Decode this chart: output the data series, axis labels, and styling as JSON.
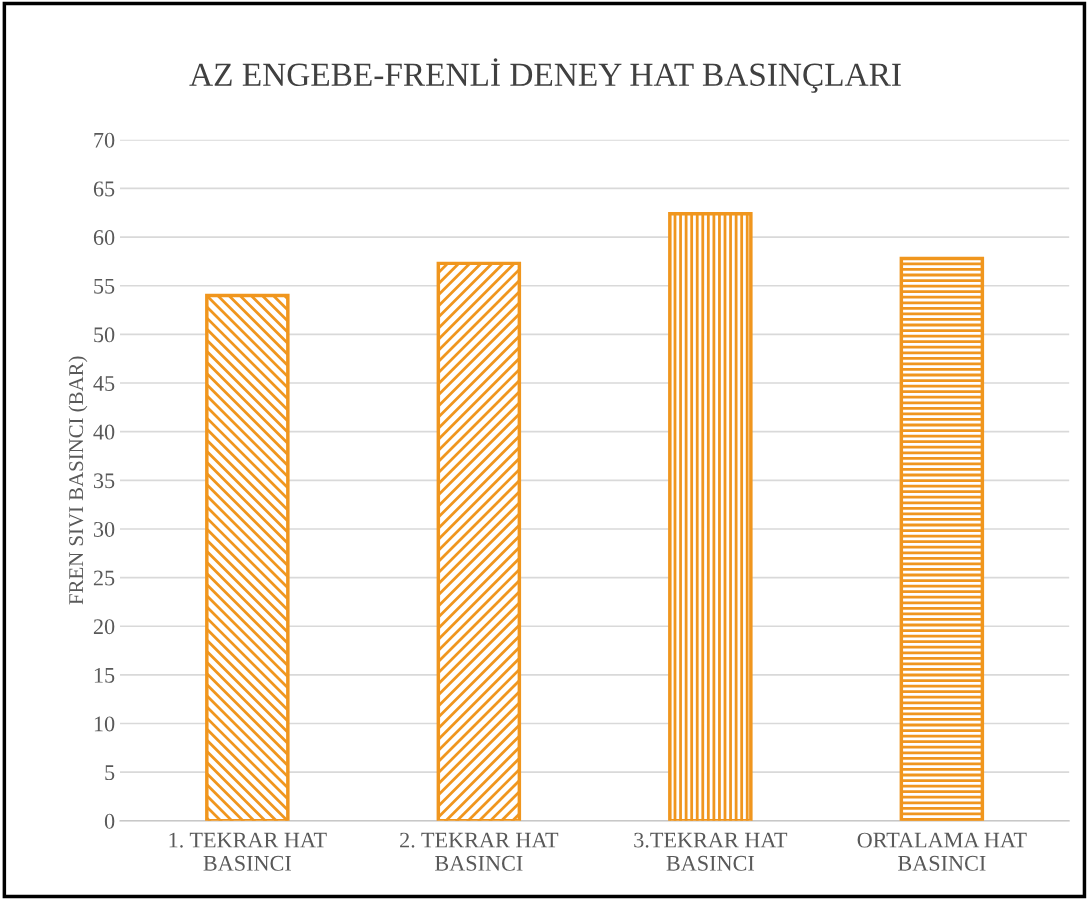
{
  "chart_data": {
    "type": "bar",
    "title": "AZ ENGEBE-FRENLİ DENEY HAT BASINÇLARI",
    "ylabel": "FREN SIVI BASINCI (BAR)",
    "categories": [
      "1. TEKRAR HAT\nBASINCI",
      "2. TEKRAR HAT\nBASINCI",
      "3.TEKRAR HAT\nBASINCI",
      "ORTALAMA HAT\nBASINCI"
    ],
    "values": [
      54,
      57.3,
      62.4,
      57.8
    ],
    "color": "#f0961e",
    "ylim": [
      0,
      70
    ],
    "yticks": [
      0,
      5,
      10,
      15,
      20,
      25,
      30,
      35,
      40,
      45,
      50,
      55,
      60,
      65,
      70
    ],
    "grid": "y"
  }
}
